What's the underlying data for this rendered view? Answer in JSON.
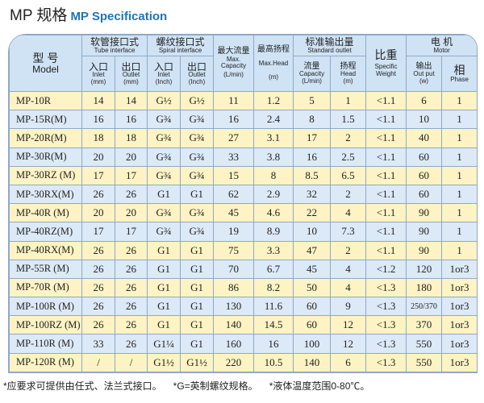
{
  "title": {
    "cn": "MP 规格",
    "en": "MP Specification"
  },
  "header": {
    "model_cn": "型 号",
    "model_en": "Model",
    "tube_cn": "软管接口式",
    "tube_en": "Tube interface",
    "spiral_cn": "螺纹接口式",
    "spiral_en": "Spiral interface",
    "inlet_cn": "入口",
    "inlet_en": "Inlet",
    "outlet_cn": "出口",
    "outlet_en": "Outlet",
    "mm": "(mm)",
    "inch": "(Inch)",
    "cap_cn": "最大流量",
    "cap_en1": "Max.",
    "cap_en2": "Capacity",
    "cap_unit": "(L/min)",
    "head_cn": "最高扬程",
    "head_en": "Max.Head",
    "head_unit": "(m)",
    "std_cn": "标准输出量",
    "std_en": "Standard outlet",
    "flow_cn": "流量",
    "flow_en": "Capacity",
    "flow_unit": "(L/min)",
    "shead_cn": "扬程",
    "shead_en": "Head",
    "shead_unit": "(m)",
    "sw_cn": "比重",
    "sw_en1": "Specific",
    "sw_en2": "Weight",
    "motor_cn": "电 机",
    "motor_en": "Motor",
    "out_cn": "输出",
    "out_en": "Out put",
    "out_unit": "(w)",
    "phase_cn": "相",
    "phase_en": "Phase"
  },
  "rows": [
    [
      "MP-10R",
      "14",
      "14",
      "G½",
      "G½",
      "11",
      "1.2",
      "5",
      "1",
      "<1.1",
      "6",
      "1"
    ],
    [
      "MP-15R(M)",
      "16",
      "16",
      "G¾",
      "G¾",
      "16",
      "2.4",
      "8",
      "1.5",
      "<1.1",
      "10",
      "1"
    ],
    [
      "MP-20R(M)",
      "18",
      "18",
      "G¾",
      "G¾",
      "27",
      "3.1",
      "17",
      "2",
      "<1.1",
      "40",
      "1"
    ],
    [
      "MP-30R(M)",
      "20",
      "20",
      "G¾",
      "G¾",
      "33",
      "3.8",
      "16",
      "2.5",
      "<1.1",
      "60",
      "1"
    ],
    [
      "MP-30RZ (M)",
      "17",
      "17",
      "G¾",
      "G¾",
      "15",
      "8",
      "8.5",
      "6.5",
      "<1.1",
      "60",
      "1"
    ],
    [
      "MP-30RX(M)",
      "26",
      "26",
      "G1",
      "G1",
      "62",
      "2.9",
      "32",
      "2",
      "<1.1",
      "60",
      "1"
    ],
    [
      "MP-40R (M)",
      "20",
      "20",
      "G¾",
      "G¾",
      "45",
      "4.6",
      "22",
      "4",
      "<1.1",
      "90",
      "1"
    ],
    [
      "MP-40RZ(M)",
      "17",
      "17",
      "G¾",
      "G¾",
      "19",
      "8.9",
      "10",
      "7.3",
      "<1.1",
      "90",
      "1"
    ],
    [
      "MP-40RX(M)",
      "26",
      "26",
      "G1",
      "G1",
      "75",
      "3.3",
      "47",
      "2",
      "<1.1",
      "90",
      "1"
    ],
    [
      "MP-55R (M)",
      "26",
      "26",
      "G1",
      "G1",
      "70",
      "6.7",
      "45",
      "4",
      "<1.2",
      "120",
      "1or3"
    ],
    [
      "MP-70R (M)",
      "26",
      "26",
      "G1",
      "G1",
      "86",
      "8.2",
      "50",
      "4",
      "<1.3",
      "180",
      "1or3"
    ],
    [
      "MP-100R (M)",
      "26",
      "26",
      "G1",
      "G1",
      "130",
      "11.6",
      "60",
      "9",
      "<1.3",
      "250/370",
      "1or3"
    ],
    [
      "MP-100RZ (M)",
      "26",
      "26",
      "G1",
      "G1",
      "140",
      "14.5",
      "60",
      "12",
      "<1.3",
      "370",
      "1or3"
    ],
    [
      "MP-110R (M)",
      "33",
      "26",
      "G1¼",
      "G1",
      "160",
      "16",
      "100",
      "12",
      "<1.3",
      "550",
      "1or3"
    ],
    [
      "MP-120R (M)",
      "/",
      "/",
      "G1½",
      "G1½",
      "220",
      "10.5",
      "140",
      "6",
      "<1.3",
      "550",
      "1or3"
    ]
  ],
  "notes": [
    "*应要求可提供由任式、法兰式接口。",
    "*G=英制螺纹规格。",
    "*液体温度范围0-80℃。"
  ],
  "colors": {
    "header": "#cfe3f5",
    "row_yellow": "#fdf3c4",
    "row_blue": "#dce9f7",
    "accent": "#1f74b8"
  }
}
